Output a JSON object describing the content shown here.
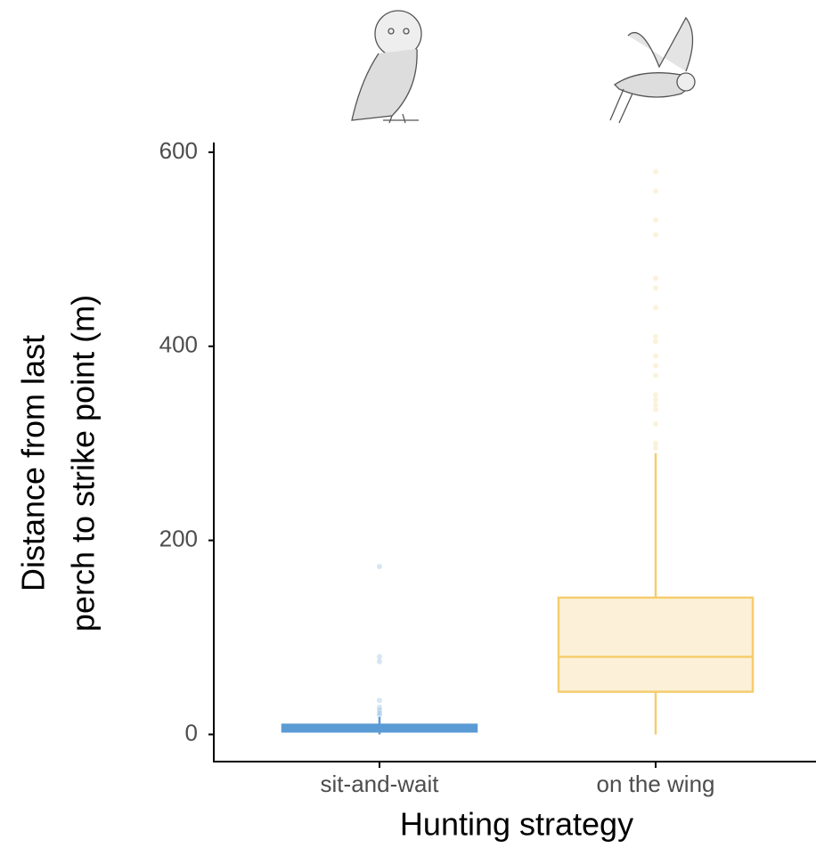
{
  "chart_data": {
    "type": "box",
    "x_label": "Hunting strategy",
    "y_label": [
      "Distance from last",
      "perch to strike point (m)"
    ],
    "categories": [
      "sit-and-wait",
      "on the wing"
    ],
    "colors": [
      "#5b9bd5",
      "#f5cd6e"
    ],
    "fills": [
      "#5b9bd5",
      "#fcf1d8"
    ],
    "boxes": [
      {
        "min": 0,
        "q1": 3,
        "median": 7,
        "q3": 10,
        "max": 18,
        "outliers": [
          20,
          22,
          25,
          28,
          35,
          75,
          80,
          173
        ]
      },
      {
        "min": 0,
        "q1": 44,
        "median": 80,
        "q3": 141,
        "max": 290,
        "outliers": [
          295,
          300,
          320,
          335,
          340,
          345,
          350,
          370,
          380,
          390,
          405,
          410,
          440,
          460,
          470,
          515,
          530,
          560,
          580
        ]
      }
    ],
    "ylim": [
      -28,
      610
    ],
    "yticks": [
      0,
      200,
      400,
      600
    ],
    "grid": false
  }
}
